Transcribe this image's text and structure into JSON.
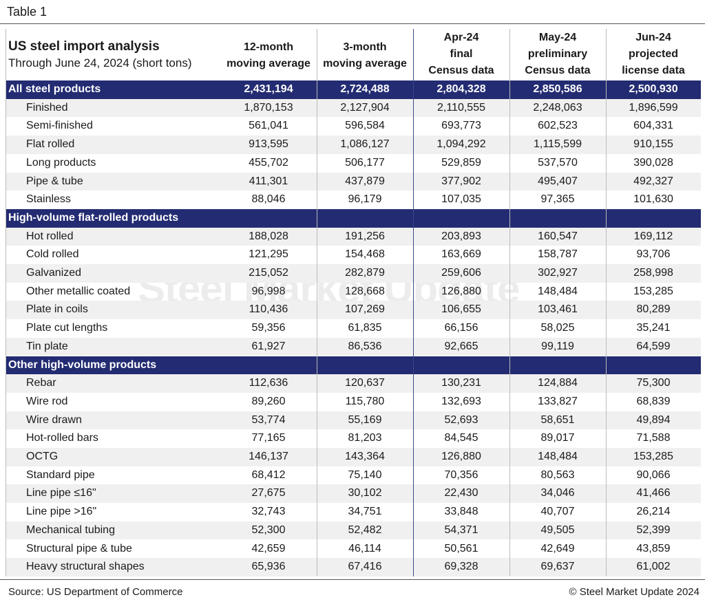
{
  "header": {
    "table_label": "Table 1",
    "title": "US steel import analysis",
    "subtitle": "Through June 24, 2024 (short tons)",
    "columns": [
      [
        "12-month",
        "moving average"
      ],
      [
        "3-month",
        "moving average"
      ],
      [
        "Apr-24",
        "final",
        "Census data"
      ],
      [
        "May-24",
        "preliminary",
        "Census data"
      ],
      [
        "Jun-24",
        "projected",
        "license data"
      ]
    ]
  },
  "watermark": "Steel Market Update",
  "sections": [
    {
      "title": "All steel products",
      "values": [
        "2,431,194",
        "2,724,488",
        "2,804,328",
        "2,850,586",
        "2,500,930"
      ],
      "rows": [
        {
          "label": "Finished",
          "values": [
            "1,870,153",
            "2,127,904",
            "2,110,555",
            "2,248,063",
            "1,896,599"
          ]
        },
        {
          "label": "Semi-finished",
          "values": [
            "561,041",
            "596,584",
            "693,773",
            "602,523",
            "604,331"
          ]
        },
        {
          "label": "Flat rolled",
          "values": [
            "913,595",
            "1,086,127",
            "1,094,292",
            "1,115,599",
            "910,155"
          ]
        },
        {
          "label": "Long products",
          "values": [
            "455,702",
            "506,177",
            "529,859",
            "537,570",
            "390,028"
          ]
        },
        {
          "label": "Pipe & tube",
          "values": [
            "411,301",
            "437,879",
            "377,902",
            "495,407",
            "492,327"
          ]
        },
        {
          "label": "Stainless",
          "values": [
            "88,046",
            "96,179",
            "107,035",
            "97,365",
            "101,630"
          ]
        }
      ]
    },
    {
      "title": "High-volume flat-rolled products",
      "rows": [
        {
          "label": "Hot rolled",
          "values": [
            "188,028",
            "191,256",
            "203,893",
            "160,547",
            "169,112"
          ]
        },
        {
          "label": "Cold rolled",
          "values": [
            "121,295",
            "154,468",
            "163,669",
            "158,787",
            "93,706"
          ]
        },
        {
          "label": "Galvanized",
          "values": [
            "215,052",
            "282,879",
            "259,606",
            "302,927",
            "258,998"
          ]
        },
        {
          "label": "Other metallic coated",
          "values": [
            "96,998",
            "128,668",
            "126,880",
            "148,484",
            "153,285"
          ]
        },
        {
          "label": "Plate in coils",
          "values": [
            "110,436",
            "107,269",
            "106,655",
            "103,461",
            "80,289"
          ]
        },
        {
          "label": "Plate cut lengths",
          "values": [
            "59,356",
            "61,835",
            "66,156",
            "58,025",
            "35,241"
          ]
        },
        {
          "label": "Tin plate",
          "values": [
            "61,927",
            "86,536",
            "92,665",
            "99,119",
            "64,599"
          ]
        }
      ]
    },
    {
      "title": "Other high-volume products",
      "rows": [
        {
          "label": "Rebar",
          "values": [
            "112,636",
            "120,637",
            "130,231",
            "124,884",
            "75,300"
          ]
        },
        {
          "label": "Wire rod",
          "values": [
            "89,260",
            "115,780",
            "132,693",
            "133,827",
            "68,839"
          ]
        },
        {
          "label": "Wire drawn",
          "values": [
            "53,774",
            "55,169",
            "52,693",
            "58,651",
            "49,894"
          ]
        },
        {
          "label": "Hot-rolled bars",
          "values": [
            "77,165",
            "81,203",
            "84,545",
            "89,017",
            "71,588"
          ]
        },
        {
          "label": "OCTG",
          "values": [
            "146,137",
            "143,364",
            "126,880",
            "148,484",
            "153,285"
          ]
        },
        {
          "label": "Standard pipe",
          "values": [
            "68,412",
            "75,140",
            "70,356",
            "80,563",
            "90,066"
          ]
        },
        {
          "label": "Line pipe ≤16\"",
          "values": [
            "27,675",
            "30,102",
            "22,430",
            "34,046",
            "41,466"
          ]
        },
        {
          "label": "Line pipe >16\"",
          "values": [
            "32,743",
            "34,751",
            "33,848",
            "40,707",
            "26,214"
          ]
        },
        {
          "label": "Mechanical tubing",
          "values": [
            "52,300",
            "52,482",
            "54,371",
            "49,505",
            "52,399"
          ]
        },
        {
          "label": "Structural pipe & tube",
          "values": [
            "42,659",
            "46,114",
            "50,561",
            "42,649",
            "43,859"
          ]
        },
        {
          "label": "Heavy structural shapes",
          "values": [
            "65,936",
            "67,416",
            "69,328",
            "69,637",
            "61,002"
          ]
        }
      ]
    }
  ],
  "footer": {
    "source": "Source: US Department of Commerce",
    "copyright": "© Steel Market Update 2024"
  }
}
